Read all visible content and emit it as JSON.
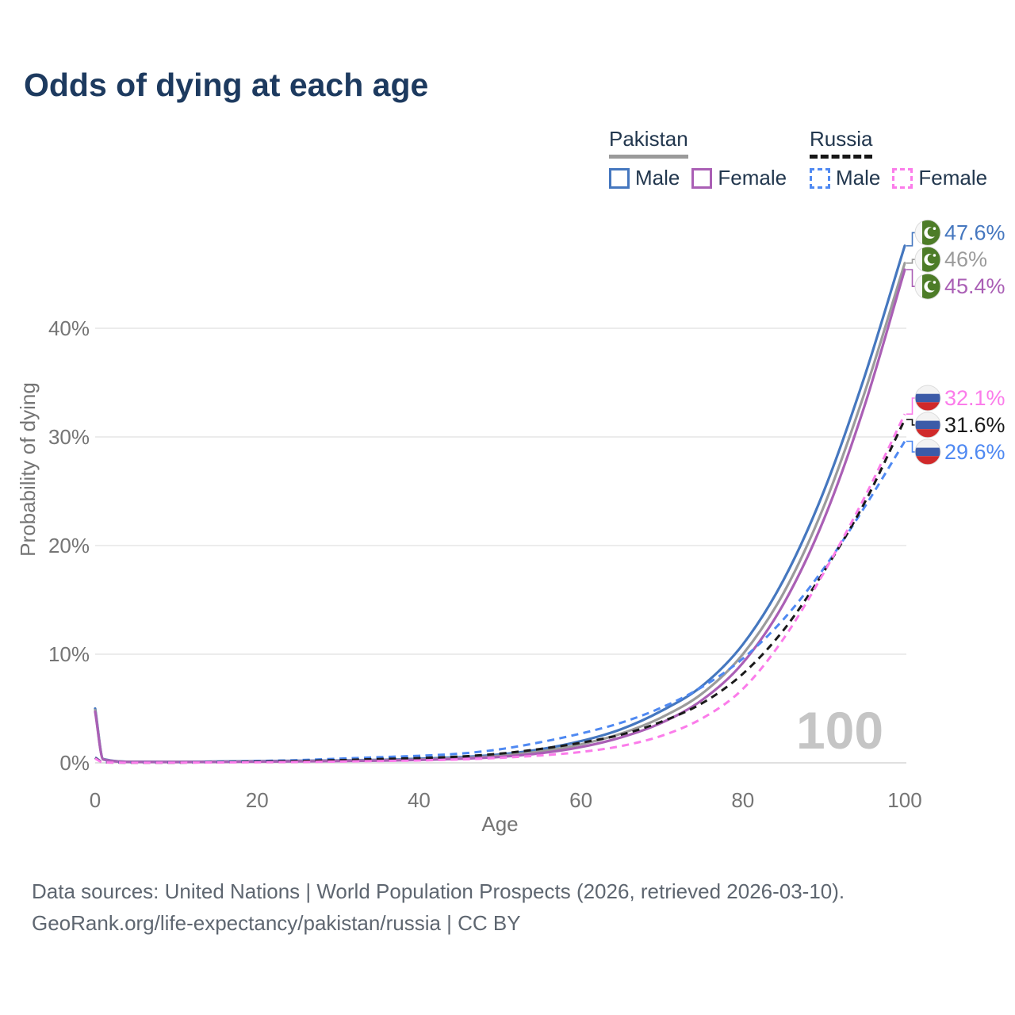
{
  "title": "Odds of dying at each age",
  "legend": {
    "groups": [
      {
        "name": "Pakistan",
        "line_style": "solid",
        "underline_color": "#9a9a9a",
        "items": [
          {
            "label": "Male",
            "color": "#4577bf",
            "line_style": "solid"
          },
          {
            "label": "Female",
            "color": "#aa5fb5",
            "line_style": "solid"
          }
        ]
      },
      {
        "name": "Russia",
        "line_style": "dashed",
        "underline_color": "#161616",
        "items": [
          {
            "label": "Male",
            "color": "#4f89f2",
            "line_style": "dashed"
          },
          {
            "label": "Female",
            "color": "#fb7cea",
            "line_style": "dashed"
          }
        ]
      }
    ]
  },
  "watermark": "100",
  "footer": {
    "line1": "Data sources: United Nations | World Population Prospects (2026, retrieved 2026-03-10).",
    "line2": "GeoRank.org/life-expectancy/pakistan/russia | CC BY"
  },
  "chart_data": {
    "type": "line",
    "title": "Odds of dying at each age",
    "xlabel": "Age",
    "ylabel": "Probability of dying",
    "xlim": [
      0,
      100
    ],
    "ylim_percent": [
      0,
      48
    ],
    "x_ticks": [
      0,
      20,
      40,
      60,
      80,
      100
    ],
    "y_ticks_percent": [
      0,
      10,
      20,
      30,
      40
    ],
    "grid": "horizontal",
    "x": [
      0,
      1,
      5,
      10,
      15,
      20,
      25,
      30,
      35,
      40,
      45,
      50,
      55,
      60,
      65,
      70,
      75,
      80,
      85,
      90,
      95,
      100
    ],
    "series": [
      {
        "name": "Pakistan Male",
        "country": "Pakistan",
        "sex": "Male",
        "color": "#4577bf",
        "dashed": false,
        "flag": "pakistan",
        "end_label": "47.6%",
        "values_percent": [
          5.0,
          0.35,
          0.1,
          0.09,
          0.12,
          0.16,
          0.19,
          0.22,
          0.28,
          0.37,
          0.52,
          0.77,
          1.25,
          2.0,
          3.1,
          4.8,
          7.1,
          10.9,
          16.8,
          25.0,
          35.5,
          47.6
        ]
      },
      {
        "name": "Pakistan Both sexes",
        "country": "Pakistan",
        "sex": "Both sexes",
        "color": "#9b9b9b",
        "dashed": false,
        "flag": "pakistan",
        "end_label": "46%",
        "values_percent": [
          4.85,
          0.33,
          0.09,
          0.08,
          0.1,
          0.13,
          0.16,
          0.19,
          0.24,
          0.31,
          0.44,
          0.65,
          1.05,
          1.7,
          2.7,
          4.2,
          6.4,
          10.0,
          15.6,
          23.6,
          34.0,
          46.0
        ]
      },
      {
        "name": "Pakistan Female",
        "country": "Pakistan",
        "sex": "Female",
        "color": "#aa5fb5",
        "dashed": false,
        "flag": "pakistan",
        "end_label": "45.4%",
        "values_percent": [
          4.7,
          0.31,
          0.08,
          0.07,
          0.09,
          0.11,
          0.13,
          0.16,
          0.2,
          0.26,
          0.37,
          0.55,
          0.88,
          1.45,
          2.35,
          3.7,
          5.8,
          9.2,
          14.6,
          22.4,
          32.8,
          45.4
        ]
      },
      {
        "name": "Russia Male",
        "country": "Russia",
        "sex": "Male",
        "color": "#4f89f2",
        "dashed": true,
        "flag": "russia",
        "end_label": "29.6%",
        "values_percent": [
          0.5,
          0.05,
          0.03,
          0.03,
          0.08,
          0.17,
          0.25,
          0.38,
          0.52,
          0.65,
          0.85,
          1.25,
          1.9,
          2.7,
          3.7,
          5.1,
          7.0,
          9.6,
          13.2,
          17.9,
          23.5,
          29.6
        ]
      },
      {
        "name": "Russia Both sexes",
        "country": "Russia",
        "sex": "Both sexes",
        "color": "#1a1a1a",
        "dashed": true,
        "flag": "russia",
        "end_label": "31.6%",
        "values_percent": [
          0.45,
          0.045,
          0.025,
          0.025,
          0.06,
          0.12,
          0.17,
          0.25,
          0.35,
          0.44,
          0.58,
          0.85,
          1.28,
          1.85,
          2.6,
          3.8,
          5.5,
          8.2,
          12.2,
          17.6,
          23.9,
          31.6
        ]
      },
      {
        "name": "Russia Female",
        "country": "Russia",
        "sex": "Female",
        "color": "#fb7cea",
        "dashed": true,
        "flag": "russia",
        "end_label": "32.1%",
        "values_percent": [
          0.4,
          0.04,
          0.02,
          0.02,
          0.04,
          0.06,
          0.08,
          0.12,
          0.17,
          0.22,
          0.31,
          0.46,
          0.68,
          1.0,
          1.55,
          2.5,
          4.1,
          6.8,
          11.4,
          17.5,
          24.4,
          32.1
        ]
      }
    ]
  }
}
